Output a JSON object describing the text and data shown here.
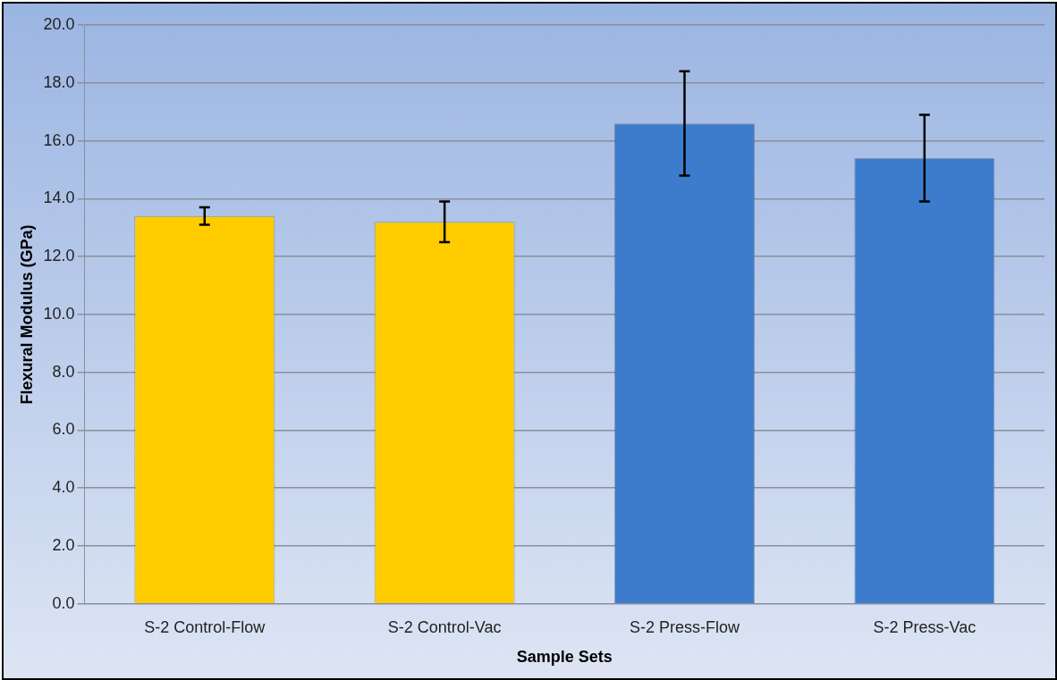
{
  "chart_data": {
    "type": "bar",
    "xlabel": "Sample Sets",
    "ylabel": "Flexural Modulus (GPa)",
    "categories": [
      "S-2 Control-Flow",
      "S-2 Control-Vac",
      "S-2 Press-Flow",
      "S-2 Press-Vac"
    ],
    "values": [
      13.4,
      13.2,
      16.6,
      15.4
    ],
    "colors": [
      "#ffcc00",
      "#ffcc00",
      "#3d7ccc",
      "#3d7ccc"
    ],
    "errors": [
      0.3,
      0.7,
      1.8,
      1.5
    ],
    "ylim": [
      0,
      20
    ],
    "yticks": [
      {
        "value": 0,
        "label": "0.0"
      },
      {
        "value": 2,
        "label": "2.0"
      },
      {
        "value": 4,
        "label": "4.0"
      },
      {
        "value": 6,
        "label": "6.0"
      },
      {
        "value": 8,
        "label": "8.0"
      },
      {
        "value": 10,
        "label": "10.0"
      },
      {
        "value": 12,
        "label": "12.0"
      },
      {
        "value": 14,
        "label": "14.0"
      },
      {
        "value": 16,
        "label": "16.0"
      },
      {
        "value": 18,
        "label": "18.0"
      },
      {
        "value": 20,
        "label": "20.0"
      }
    ],
    "grid": "y",
    "legend": false
  }
}
